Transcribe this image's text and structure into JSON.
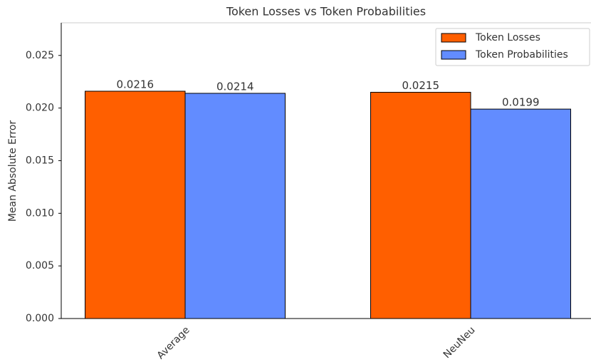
{
  "chart_data": {
    "type": "bar",
    "title": "Token Losses vs Token Probabilities",
    "y_label": "Mean Absolute Error",
    "categories": [
      "Average",
      "NeuNeu"
    ],
    "series": [
      {
        "name": "Token Losses",
        "color": "#ff5f00",
        "values": [
          0.0216,
          0.0215
        ]
      },
      {
        "name": "Token Probabilities",
        "color": "#628cff",
        "values": [
          0.0214,
          0.0199
        ]
      }
    ],
    "ylim": [
      0,
      0.0281
    ],
    "yticks": [
      {
        "value": 0,
        "label": "0.000"
      },
      0.005,
      {
        "value": 0.01,
        "label": "0.010"
      },
      0.015,
      {
        "value": 0.02,
        "label": "0.020"
      },
      0.025
    ],
    "legend": "upper right"
  }
}
